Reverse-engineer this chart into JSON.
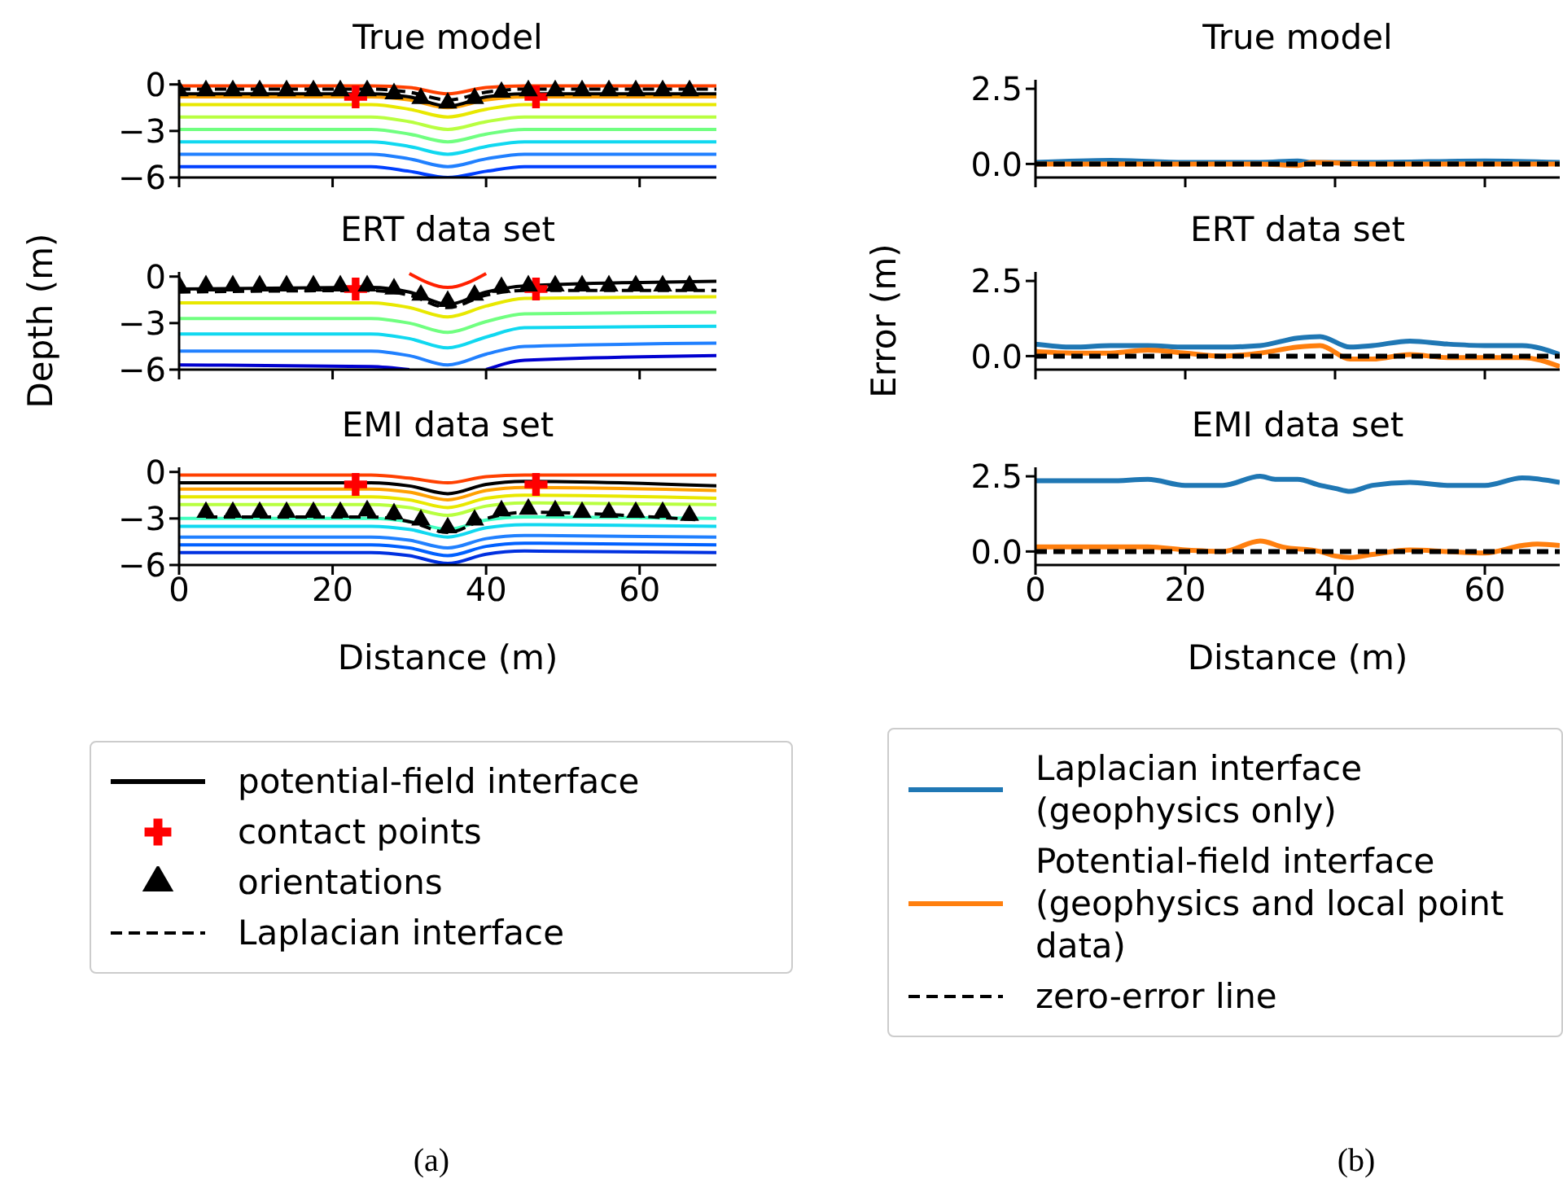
{
  "chart_data": [
    {
      "type": "line",
      "title": "True model",
      "x": [
        0,
        25,
        30,
        35,
        40,
        45,
        70
      ],
      "xlim": [
        0,
        70
      ],
      "xticks": [
        0,
        20,
        40,
        60
      ],
      "ylim": [
        -6,
        0.3
      ],
      "yticks": [
        {
          "value": 0,
          "label": "0"
        },
        {
          "value": -3,
          "label": "−3"
        },
        {
          "value": -6,
          "label": "−6"
        }
      ],
      "tick_labels": "y",
      "series": [
        {
          "color": "#ff4000",
          "values": [
            -0.1,
            -0.1,
            -0.2,
            -0.6,
            -0.2,
            -0.1,
            -0.1
          ]
        },
        {
          "color": "#ffa000",
          "values": [
            -0.8,
            -0.8,
            -1.0,
            -1.5,
            -1.0,
            -0.8,
            -0.8
          ]
        },
        {
          "color": "#e8e800",
          "values": [
            -1.3,
            -1.3,
            -1.6,
            -2.1,
            -1.6,
            -1.3,
            -1.3
          ]
        },
        {
          "color": "#b8ff40",
          "values": [
            -2.1,
            -2.1,
            -2.4,
            -2.9,
            -2.4,
            -2.1,
            -2.1
          ]
        },
        {
          "color": "#70ff80",
          "values": [
            -2.9,
            -2.9,
            -3.2,
            -3.7,
            -3.2,
            -2.9,
            -2.9
          ]
        },
        {
          "color": "#10d8f0",
          "values": [
            -3.7,
            -3.7,
            -4.0,
            -4.5,
            -4.0,
            -3.7,
            -3.7
          ]
        },
        {
          "color": "#2080ff",
          "values": [
            -4.5,
            -4.5,
            -4.8,
            -5.3,
            -4.8,
            -4.5,
            -4.5
          ]
        },
        {
          "color": "#0040ff",
          "values": [
            -5.3,
            -5.3,
            -5.6,
            -6.0,
            -5.6,
            -5.3,
            -5.3
          ]
        },
        {
          "color": "#000000",
          "values": [
            -0.6,
            -0.6,
            -0.8,
            -1.4,
            -0.8,
            -0.6,
            -0.6
          ]
        },
        {
          "type": "scatter",
          "marker": "cross",
          "color": "#ff0000",
          "x": [
            23,
            46.5
          ],
          "values": [
            -0.8,
            -0.8
          ]
        },
        {
          "type": "scatter",
          "marker": "triangle",
          "color": "#000000",
          "x": [
            0,
            3.5,
            7,
            10.5,
            14,
            17.5,
            21,
            24.5,
            28,
            31.5,
            35,
            38.5,
            42,
            45.5,
            49,
            52.5,
            56,
            59.5,
            63,
            66.5
          ],
          "values": [
            -0.4,
            -0.4,
            -0.4,
            -0.4,
            -0.4,
            -0.4,
            -0.4,
            -0.4,
            -0.6,
            -0.9,
            -1.2,
            -0.9,
            -0.5,
            -0.4,
            -0.4,
            -0.4,
            -0.4,
            -0.4,
            -0.4,
            -0.4
          ]
        },
        {
          "color": "#000000",
          "line_style": "dashed",
          "values": [
            -0.3,
            -0.3,
            -0.5,
            -1.0,
            -0.5,
            -0.3,
            -0.3
          ]
        }
      ]
    },
    {
      "type": "line",
      "title": "True model",
      "x": [
        0,
        10,
        20,
        30,
        35,
        37,
        45,
        60,
        70
      ],
      "xlim": [
        0,
        70
      ],
      "xticks": [
        0,
        20,
        40,
        60
      ],
      "ylim": [
        -0.45,
        2.8
      ],
      "yticks": [
        {
          "value": 0,
          "label": "0.0"
        },
        {
          "value": 2.5,
          "label": "2.5"
        }
      ],
      "tick_labels": "y",
      "series": [
        {
          "color": "#1f77b4",
          "values": [
            0.05,
            0.12,
            0.05,
            0.05,
            0.1,
            0.05,
            0.05,
            0.1,
            0.05
          ]
        },
        {
          "color": "#ff7f0e",
          "values": [
            0,
            0,
            0,
            0,
            -0.05,
            0.05,
            0,
            0,
            0
          ]
        },
        {
          "color": "#000000",
          "line_style": "dashed",
          "x": [
            0,
            70
          ],
          "values": [
            0,
            0
          ]
        }
      ]
    },
    {
      "type": "line",
      "title": "ERT data set",
      "ylabel": "Depth (m)",
      "x": [
        0,
        25,
        30,
        35,
        40,
        45,
        70
      ],
      "xlim": [
        0,
        70
      ],
      "xticks": [
        0,
        20,
        40,
        60
      ],
      "ylim": [
        -6,
        0.3
      ],
      "yticks": [
        {
          "value": 0,
          "label": "0"
        },
        {
          "value": -3,
          "label": "−3"
        },
        {
          "value": -6,
          "label": "−6"
        }
      ],
      "tick_labels": "y",
      "series": [
        {
          "color": "#ff2000",
          "values": [
            null,
            null,
            0.2,
            -0.7,
            0.2,
            null,
            null
          ]
        },
        {
          "color": "#e8e800",
          "values": [
            -1.7,
            -1.7,
            -2.0,
            -2.6,
            -1.9,
            -1.4,
            -1.3
          ]
        },
        {
          "color": "#70ff80",
          "values": [
            -2.7,
            -2.7,
            -3.0,
            -3.6,
            -2.9,
            -2.4,
            -2.3
          ]
        },
        {
          "color": "#10d8f0",
          "values": [
            -3.7,
            -3.7,
            -4.0,
            -4.6,
            -3.9,
            -3.3,
            -3.2
          ]
        },
        {
          "color": "#2080ff",
          "values": [
            -4.8,
            -4.8,
            -5.1,
            -5.7,
            -5.0,
            -4.5,
            -4.3
          ]
        },
        {
          "color": "#0000d0",
          "values": [
            -5.7,
            -5.8,
            -6.0,
            null,
            -6.0,
            -5.4,
            -5.1
          ]
        },
        {
          "color": "#000000",
          "values": [
            -0.8,
            -0.7,
            -1.0,
            -1.8,
            -1.0,
            -0.6,
            -0.3
          ]
        },
        {
          "type": "scatter",
          "marker": "cross",
          "color": "#ff0000",
          "x": [
            23,
            46.5
          ],
          "values": [
            -0.8,
            -0.8
          ]
        },
        {
          "type": "scatter",
          "marker": "triangle",
          "color": "#000000",
          "x": [
            0,
            3.5,
            7,
            10.5,
            14,
            17.5,
            21,
            24.5,
            28,
            31.5,
            35,
            38.5,
            42,
            45.5,
            49,
            52.5,
            56,
            59.5,
            63,
            66.5
          ],
          "values": [
            -0.6,
            -0.6,
            -0.6,
            -0.6,
            -0.6,
            -0.6,
            -0.6,
            -0.6,
            -0.8,
            -1.2,
            -1.6,
            -1.2,
            -0.7,
            -0.6,
            -0.6,
            -0.6,
            -0.6,
            -0.6,
            -0.6,
            -0.6
          ]
        },
        {
          "color": "#000000",
          "line_style": "dashed",
          "values": [
            -1.0,
            -0.9,
            -1.2,
            -2.0,
            -1.2,
            -0.9,
            -0.9
          ]
        }
      ]
    },
    {
      "type": "line",
      "title": "ERT data set",
      "ylabel": "Error (m)",
      "x": [
        0,
        5,
        10,
        15,
        20,
        25,
        30,
        35,
        38,
        42,
        45,
        50,
        55,
        60,
        65,
        70
      ],
      "xlim": [
        0,
        70
      ],
      "xticks": [
        0,
        20,
        40,
        60
      ],
      "ylim": [
        -0.45,
        2.8
      ],
      "yticks": [
        {
          "value": 0,
          "label": "0.0"
        },
        {
          "value": 2.5,
          "label": "2.5"
        }
      ],
      "tick_labels": "y",
      "series": [
        {
          "color": "#1f77b4",
          "values": [
            0.4,
            0.3,
            0.35,
            0.35,
            0.3,
            0.3,
            0.35,
            0.6,
            0.65,
            0.3,
            0.35,
            0.5,
            0.4,
            0.35,
            0.35,
            0.05
          ]
        },
        {
          "color": "#ff7f0e",
          "values": [
            0.15,
            0.1,
            0.1,
            0.2,
            0.1,
            0.0,
            0.1,
            0.3,
            0.35,
            -0.1,
            -0.1,
            0.05,
            -0.05,
            -0.05,
            -0.05,
            -0.35
          ]
        },
        {
          "color": "#000000",
          "line_style": "dashed",
          "x": [
            0,
            70
          ],
          "values": [
            0,
            0
          ]
        }
      ]
    },
    {
      "type": "line",
      "title": "EMI data set",
      "xlabel": "Distance (m)",
      "x": [
        0,
        25,
        30,
        35,
        40,
        45,
        70
      ],
      "xlim": [
        0,
        70
      ],
      "xticks": [
        0,
        20,
        40,
        60
      ],
      "ylim": [
        -6,
        0.3
      ],
      "yticks": [
        {
          "value": 0,
          "label": "0"
        },
        {
          "value": -3,
          "label": "−3"
        },
        {
          "value": -6,
          "label": "−6"
        }
      ],
      "legend": "bottom",
      "annotations": [
        "(a)"
      ],
      "series": [
        {
          "color": "#ff4000",
          "values": [
            -0.2,
            -0.2,
            -0.4,
            -0.7,
            -0.3,
            -0.2,
            -0.2
          ]
        },
        {
          "color": "#ffa000",
          "values": [
            -1.1,
            -1.1,
            -1.3,
            -1.8,
            -1.2,
            -1.0,
            -1.2
          ]
        },
        {
          "color": "#e8e800",
          "values": [
            -1.6,
            -1.6,
            -1.8,
            -2.3,
            -1.7,
            -1.5,
            -1.7
          ]
        },
        {
          "color": "#b8ff40",
          "values": [
            -2.1,
            -2.1,
            -2.3,
            -2.8,
            -2.2,
            -2.0,
            -2.1
          ]
        },
        {
          "color": "#40ffc0",
          "values": [
            -3.0,
            -3.0,
            -3.2,
            -3.7,
            -3.1,
            -2.9,
            -3.0
          ]
        },
        {
          "color": "#10d8f0",
          "values": [
            -3.5,
            -3.5,
            -3.7,
            -4.2,
            -3.6,
            -3.4,
            -3.5
          ]
        },
        {
          "color": "#2080ff",
          "values": [
            -4.2,
            -4.2,
            -4.4,
            -4.9,
            -4.3,
            -4.1,
            -4.2
          ]
        },
        {
          "color": "#0060ff",
          "values": [
            -4.7,
            -4.7,
            -4.9,
            -5.4,
            -4.8,
            -4.6,
            -4.7
          ]
        },
        {
          "color": "#0030e0",
          "values": [
            -5.2,
            -5.2,
            -5.4,
            -5.9,
            -5.3,
            -5.1,
            -5.2
          ]
        },
        {
          "name": "potential-field interface",
          "color": "#000000",
          "values": [
            -0.7,
            -0.7,
            -0.9,
            -1.4,
            -0.8,
            -0.6,
            -0.9
          ]
        },
        {
          "name": "contact points",
          "type": "scatter",
          "marker": "cross",
          "color": "#ff0000",
          "x": [
            23,
            46.5
          ],
          "values": [
            -0.8,
            -0.8
          ]
        },
        {
          "name": "orientations",
          "type": "scatter",
          "marker": "triangle",
          "color": "#000000",
          "x": [
            3.5,
            7,
            10.5,
            14,
            17.5,
            21,
            24.5,
            28,
            31.5,
            35,
            38.5,
            42,
            45.5,
            49,
            52.5,
            56,
            59.5,
            63,
            66.5
          ],
          "values": [
            -2.6,
            -2.6,
            -2.6,
            -2.6,
            -2.6,
            -2.6,
            -2.5,
            -2.7,
            -3.1,
            -3.6,
            -3.1,
            -2.5,
            -2.4,
            -2.5,
            -2.6,
            -2.6,
            -2.6,
            -2.6,
            -2.8
          ]
        },
        {
          "name": "Laplacian interface",
          "color": "#000000",
          "line_style": "dashed",
          "x": [
            3.5,
            25,
            30,
            35,
            40,
            45,
            68
          ],
          "values": [
            -2.9,
            -2.9,
            -3.2,
            -3.9,
            -3.0,
            -2.6,
            -3.1
          ]
        }
      ]
    },
    {
      "type": "line",
      "title": "EMI data set",
      "xlabel": "Distance (m)",
      "x": [
        0,
        10,
        15,
        20,
        25,
        30,
        32,
        35,
        38,
        40,
        42,
        45,
        50,
        55,
        60,
        65,
        70
      ],
      "xlim": [
        0,
        70
      ],
      "xticks": [
        0,
        20,
        40,
        60
      ],
      "ylim": [
        -0.45,
        2.8
      ],
      "yticks": [
        {
          "value": 0,
          "label": "0.0"
        },
        {
          "value": 2.5,
          "label": "2.5"
        }
      ],
      "legend": "bottom",
      "annotations": [
        "(b)"
      ],
      "series": [
        {
          "name": "Laplacian interface (geophysics only)",
          "color": "#1f77b4",
          "values": [
            2.35,
            2.35,
            2.4,
            2.2,
            2.2,
            2.5,
            2.4,
            2.4,
            2.2,
            2.1,
            2.0,
            2.2,
            2.3,
            2.2,
            2.2,
            2.45,
            2.3
          ]
        },
        {
          "name": "Potential-field interface (geophysics and local point data)",
          "color": "#ff7f0e",
          "x": [
            0,
            15,
            20,
            25,
            30,
            33,
            38,
            40,
            42,
            45,
            50,
            55,
            60,
            65,
            67,
            70
          ],
          "values": [
            0.15,
            0.15,
            0.05,
            0.0,
            0.35,
            0.15,
            0.0,
            -0.15,
            -0.2,
            -0.1,
            0.05,
            0.0,
            -0.05,
            0.2,
            0.25,
            0.2
          ]
        },
        {
          "name": "zero-error line",
          "color": "#000000",
          "line_style": "dashed",
          "x": [
            0,
            70
          ],
          "values": [
            0,
            0
          ]
        }
      ]
    }
  ]
}
